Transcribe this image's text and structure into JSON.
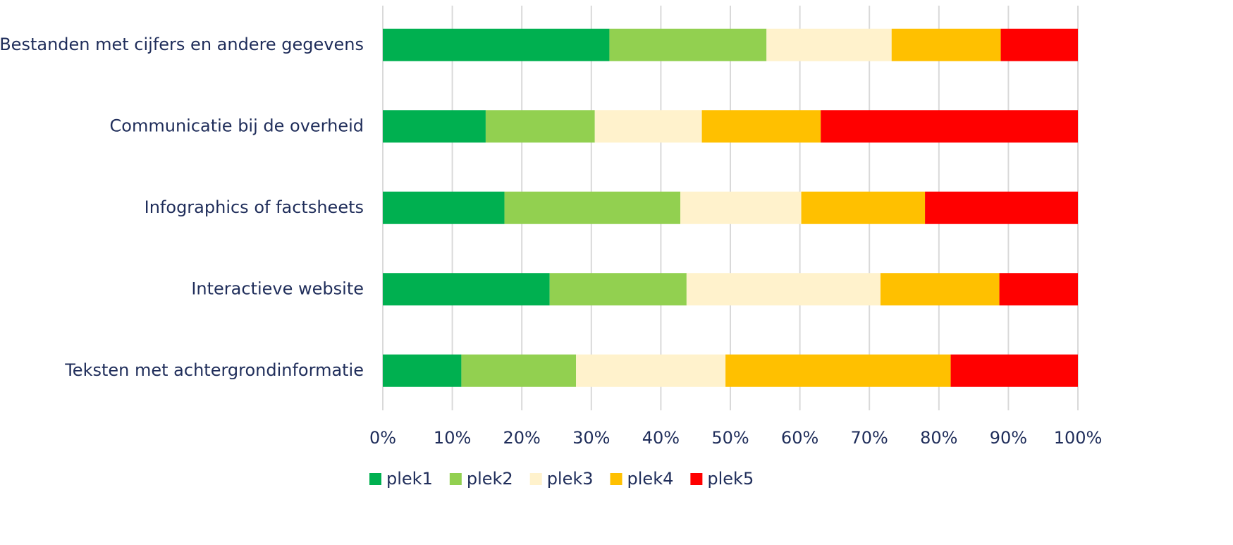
{
  "chart_data": {
    "type": "stacked_bar_horizontal",
    "categories": [
      "Bestanden met cijfers en andere gegevens",
      "Communicatie bij de overheid",
      "Infographics of factsheets",
      "Interactieve website",
      "Teksten met achtergrondinformatie"
    ],
    "series": [
      {
        "name": "plek1",
        "color": "#00b050",
        "values": [
          32.6,
          14.8,
          17.5,
          24.0,
          11.3
        ]
      },
      {
        "name": "plek2",
        "color": "#92d050",
        "values": [
          22.6,
          15.7,
          25.3,
          19.7,
          16.5
        ]
      },
      {
        "name": "plek3",
        "color": "#fff2cc",
        "values": [
          18.0,
          15.4,
          17.4,
          27.9,
          21.5
        ]
      },
      {
        "name": "plek4",
        "color": "#ffc000",
        "values": [
          15.7,
          17.1,
          17.8,
          17.1,
          32.4
        ]
      },
      {
        "name": "plek5",
        "color": "#ff0000",
        "values": [
          11.1,
          37.0,
          22.0,
          11.3,
          18.3
        ]
      }
    ],
    "xlim": [
      0,
      100
    ],
    "xticks": [
      {
        "value": 0,
        "label": "0%"
      },
      {
        "value": 10,
        "label": "10%"
      },
      {
        "value": 20,
        "label": "20%"
      },
      {
        "value": 30,
        "label": "30%"
      },
      {
        "value": 40,
        "label": "40%"
      },
      {
        "value": 50,
        "label": "50%"
      },
      {
        "value": 60,
        "label": "60%"
      },
      {
        "value": 70,
        "label": "70%"
      },
      {
        "value": 80,
        "label": "80%"
      },
      {
        "value": 90,
        "label": "90%"
      },
      {
        "value": 100,
        "label": "100%"
      }
    ],
    "grid": true,
    "legend": "bottom"
  }
}
